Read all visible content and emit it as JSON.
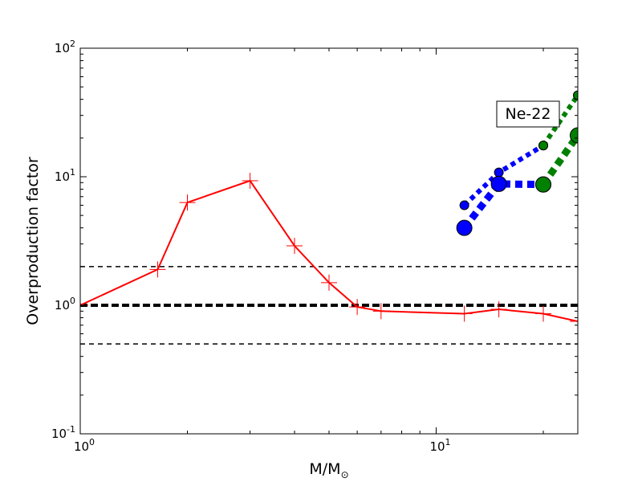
{
  "chart_data": {
    "type": "line",
    "xscale": "log",
    "yscale": "log",
    "xlim": [
      1,
      25
    ],
    "ylim": [
      0.1,
      100
    ],
    "xlabel_main": "M/M",
    "xlabel_sub": "⊙",
    "ylabel": "Overproduction factor",
    "annotation": "Ne-22",
    "grid": false,
    "x_ticks": [
      {
        "value": 1,
        "base": "10",
        "exp": "0"
      },
      {
        "value": 10,
        "base": "10",
        "exp": "1"
      }
    ],
    "y_ticks": [
      {
        "value": 0.1,
        "base": "10",
        "exp": "-1"
      },
      {
        "value": 1,
        "base": "10",
        "exp": "0"
      },
      {
        "value": 10,
        "base": "10",
        "exp": "1"
      },
      {
        "value": 100,
        "base": "10",
        "exp": "2"
      }
    ],
    "reference_lines": [
      {
        "y": 2.0,
        "style": "thin-dash"
      },
      {
        "y": 1.0,
        "style": "thick-dash"
      },
      {
        "y": 0.5,
        "style": "thin-dash"
      }
    ],
    "series": [
      {
        "color": "#ff0000",
        "line": "solid",
        "marker": "plus",
        "points": [
          [
            1.0,
            1.0
          ],
          [
            1.65,
            1.9
          ],
          [
            2.0,
            6.3
          ],
          [
            3.0,
            9.3
          ],
          [
            4.0,
            2.9
          ],
          [
            5.0,
            1.5
          ],
          [
            6.0,
            0.97
          ],
          [
            7.0,
            0.9
          ],
          [
            12.0,
            0.86
          ],
          [
            15.0,
            0.93
          ],
          [
            20.0,
            0.86
          ],
          [
            25.0,
            0.75
          ]
        ]
      },
      {
        "color": "#0000ff",
        "line": "dotted",
        "marker": "small-circle",
        "points": [
          [
            12.0,
            6.0
          ],
          [
            15.0,
            10.8
          ],
          [
            20.0,
            17.5
          ]
        ]
      },
      {
        "color": "#0000ff",
        "line": "thick-dotted",
        "marker": "large-circle",
        "points": [
          [
            12.0,
            4.0
          ],
          [
            15.0,
            8.8
          ],
          [
            20.0,
            8.7
          ]
        ]
      },
      {
        "color": "#008000",
        "line": "dotted",
        "marker": "small-circle",
        "points": [
          [
            20.0,
            17.5
          ],
          [
            25.0,
            43.0
          ]
        ]
      },
      {
        "color": "#008000",
        "line": "thick-dotted",
        "marker": "large-circle",
        "points": [
          [
            20.0,
            8.7
          ],
          [
            25.0,
            21.0
          ]
        ]
      }
    ]
  }
}
